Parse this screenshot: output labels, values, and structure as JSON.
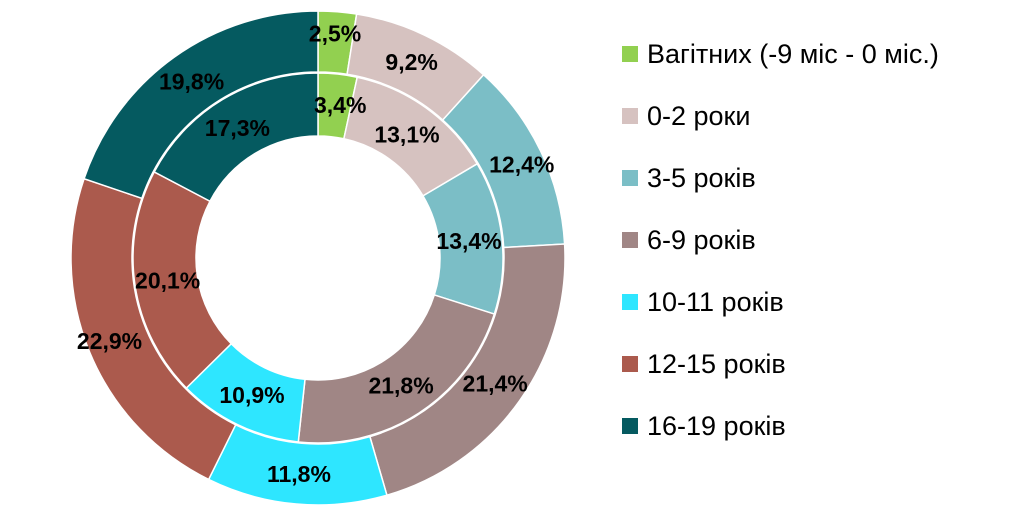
{
  "chart_data": {
    "type": "pie",
    "variant": "double-donut",
    "categories": [
      "Вагітних (-9 міс - 0 міс.)",
      "0-2 роки",
      "3-5 років",
      "6-9 років",
      "10-11 років",
      "12-15 років",
      "16-19 років"
    ],
    "colors": [
      "#92d050",
      "#d6c2c0",
      "#7bbec6",
      "#a08685",
      "#2ee6ff",
      "#ab5a4d",
      "#055a60"
    ],
    "series": [
      {
        "ring": "outer",
        "values": [
          2.5,
          9.2,
          12.4,
          21.4,
          11.8,
          22.9,
          19.8
        ],
        "labels": [
          "2,5%",
          "9,2%",
          "12,4%",
          "21,4%",
          "11,8%",
          "22,9%",
          "19,8%"
        ]
      },
      {
        "ring": "inner",
        "values": [
          3.4,
          13.1,
          13.4,
          21.8,
          10.9,
          20.1,
          17.3
        ],
        "labels": [
          "3,4%",
          "13,1%",
          "13,4%",
          "21,8%",
          "10,9%",
          "20,1%",
          "17,3%"
        ]
      }
    ],
    "legend_position": "right"
  }
}
